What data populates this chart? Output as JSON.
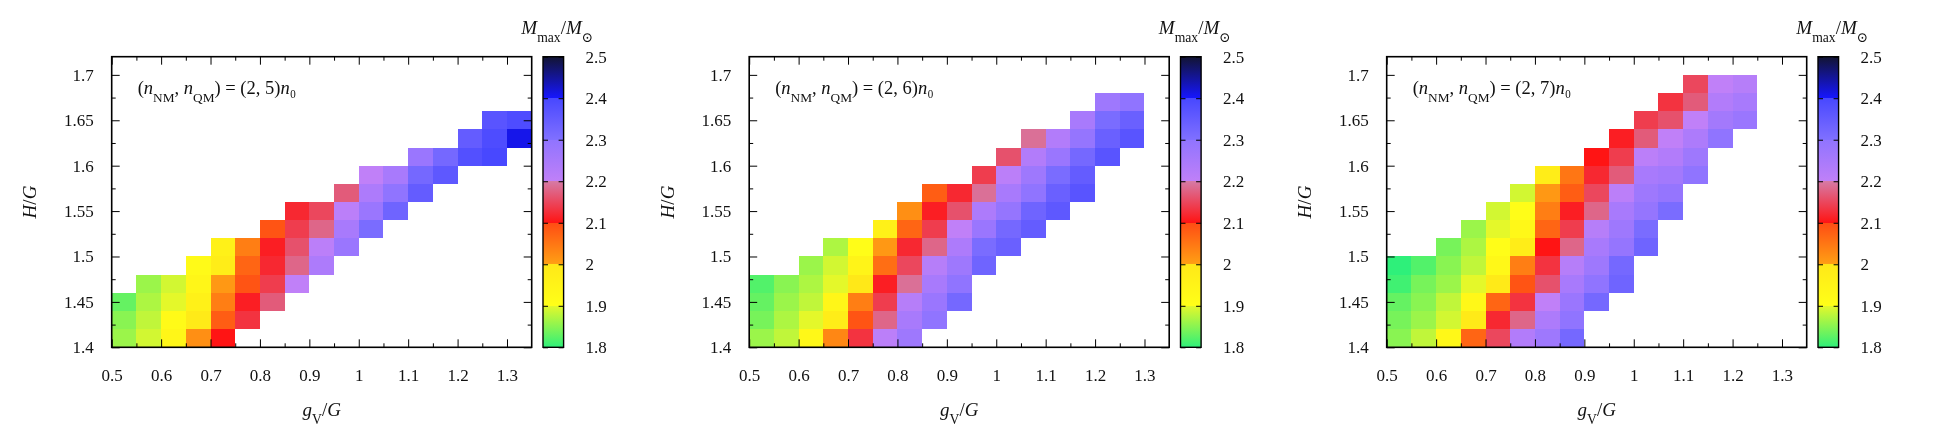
{
  "chart_data": [
    {
      "type": "scatter",
      "marker": "square",
      "xlabel": "g$_{V}$/G",
      "ylabel": "H/G",
      "clabel": "M$_{max}$/M$_{⊙}$",
      "annotations": [
        "(n$_{NM}$, n$_{QM}$) = (2, 5)n₀"
      ],
      "xlim": [
        0.5,
        1.35
      ],
      "ylim": [
        1.4,
        1.72
      ],
      "xticks": [
        0.5,
        {
          "value": 0.55,
          "label": null
        },
        0.6,
        {
          "value": 0.65,
          "label": null
        },
        0.7,
        {
          "value": 0.75,
          "label": null
        },
        0.8,
        {
          "value": 0.85,
          "label": null
        },
        0.9,
        {
          "value": 0.95,
          "label": null
        },
        1,
        {
          "value": 1.05,
          "label": null
        },
        1.1,
        {
          "value": 1.15,
          "label": null
        },
        1.2,
        {
          "value": 1.25,
          "label": null
        },
        1.3
      ],
      "yticks": [
        1.4,
        {
          "value": 1.425,
          "label": null
        },
        1.45,
        {
          "value": 1.475,
          "label": null
        },
        1.5,
        {
          "value": 1.525,
          "label": null
        },
        1.55,
        {
          "value": 1.575,
          "label": null
        },
        1.6,
        {
          "value": 1.625,
          "label": null
        },
        1.65,
        {
          "value": 1.675,
          "label": null
        },
        1.7
      ],
      "x": [
        0.525,
        0.525,
        0.525,
        0.575,
        0.575,
        0.575,
        0.575,
        0.625,
        0.625,
        0.625,
        0.625,
        0.675,
        0.675,
        0.675,
        0.675,
        0.675,
        0.725,
        0.725,
        0.725,
        0.725,
        0.725,
        0.725,
        0.775,
        0.775,
        0.775,
        0.775,
        0.775,
        0.825,
        0.825,
        0.825,
        0.825,
        0.825,
        0.875,
        0.875,
        0.875,
        0.875,
        0.875,
        0.925,
        0.925,
        0.925,
        0.925,
        0.975,
        0.975,
        0.975,
        0.975,
        1.025,
        1.025,
        1.025,
        1.025,
        1.075,
        1.075,
        1.075,
        1.125,
        1.125,
        1.125,
        1.175,
        1.175,
        1.225,
        1.225,
        1.275,
        1.275,
        1.275,
        1.325,
        1.325
      ],
      "values": [
        1.41,
        1.43,
        1.45,
        1.41,
        1.43,
        1.45,
        1.47,
        1.41,
        1.43,
        1.45,
        1.47,
        1.41,
        1.43,
        1.45,
        1.47,
        1.49,
        1.41,
        1.43,
        1.45,
        1.47,
        1.49,
        1.51,
        1.43,
        1.45,
        1.47,
        1.49,
        1.51,
        1.45,
        1.47,
        1.49,
        1.51,
        1.53,
        1.47,
        1.49,
        1.51,
        1.53,
        1.55,
        1.49,
        1.51,
        1.53,
        1.55,
        1.51,
        1.53,
        1.55,
        1.57,
        1.53,
        1.55,
        1.57,
        1.59,
        1.55,
        1.57,
        1.59,
        1.57,
        1.59,
        1.61,
        1.59,
        1.61,
        1.61,
        1.63,
        1.61,
        1.63,
        1.65,
        1.63,
        1.65
      ],
      "cvalues": [
        1.86,
        1.85,
        1.83,
        1.89,
        1.88,
        1.87,
        1.86,
        1.94,
        1.92,
        1.9,
        1.89,
        2.02,
        1.99,
        1.96,
        1.94,
        1.92,
        2.1,
        2.08,
        2.04,
        2.01,
        1.98,
        1.96,
        2.13,
        2.11,
        2.09,
        2.07,
        2.04,
        2.17,
        2.14,
        2.12,
        2.11,
        2.09,
        2.2,
        2.18,
        2.16,
        2.14,
        2.12,
        2.24,
        2.21,
        2.18,
        2.15,
        2.28,
        2.25,
        2.21,
        2.17,
        2.31,
        2.28,
        2.24,
        2.2,
        2.33,
        2.3,
        2.25,
        2.35,
        2.32,
        2.28,
        2.36,
        2.32,
        2.38,
        2.35,
        2.4,
        2.39,
        2.37,
        2.41,
        2.39
      ],
      "clim": [
        1.8,
        2.5
      ],
      "cticks": [
        1.8,
        1.9,
        2,
        2.1,
        2.2,
        2.3,
        2.4,
        2.5
      ]
    },
    {
      "type": "scatter",
      "marker": "square",
      "xlabel": "g$_{V}$/G",
      "ylabel": "H/G",
      "clabel": "M$_{max}$/M$_{⊙}$",
      "annotations": [
        "(n$_{NM}$, n$_{QM}$) = (2, 6)n₀"
      ],
      "xlim": [
        0.5,
        1.35
      ],
      "ylim": [
        1.4,
        1.72
      ],
      "xticks": [
        0.5,
        {
          "value": 0.55,
          "label": null
        },
        0.6,
        {
          "value": 0.65,
          "label": null
        },
        0.7,
        {
          "value": 0.75,
          "label": null
        },
        0.8,
        {
          "value": 0.85,
          "label": null
        },
        0.9,
        {
          "value": 0.95,
          "label": null
        },
        1,
        {
          "value": 1.05,
          "label": null
        },
        1.1,
        {
          "value": 1.15,
          "label": null
        },
        1.2,
        {
          "value": 1.25,
          "label": null
        },
        1.3
      ],
      "yticks": [
        1.4,
        {
          "value": 1.425,
          "label": null
        },
        1.45,
        {
          "value": 1.475,
          "label": null
        },
        1.5,
        {
          "value": 1.525,
          "label": null
        },
        1.55,
        {
          "value": 1.575,
          "label": null
        },
        1.6,
        {
          "value": 1.625,
          "label": null
        },
        1.65,
        {
          "value": 1.675,
          "label": null
        },
        1.7
      ],
      "x": [
        0.525,
        0.525,
        0.525,
        0.525,
        0.575,
        0.575,
        0.575,
        0.575,
        0.625,
        0.625,
        0.625,
        0.625,
        0.625,
        0.675,
        0.675,
        0.675,
        0.675,
        0.675,
        0.675,
        0.725,
        0.725,
        0.725,
        0.725,
        0.725,
        0.725,
        0.775,
        0.775,
        0.775,
        0.775,
        0.775,
        0.775,
        0.775,
        0.825,
        0.825,
        0.825,
        0.825,
        0.825,
        0.825,
        0.825,
        0.825,
        0.875,
        0.875,
        0.875,
        0.875,
        0.875,
        0.875,
        0.875,
        0.875,
        0.925,
        0.925,
        0.925,
        0.925,
        0.925,
        0.925,
        0.925,
        0.975,
        0.975,
        0.975,
        0.975,
        0.975,
        0.975,
        1.025,
        1.025,
        1.025,
        1.025,
        1.025,
        1.025,
        1.075,
        1.075,
        1.075,
        1.075,
        1.075,
        1.075,
        1.125,
        1.125,
        1.125,
        1.125,
        1.125,
        1.175,
        1.175,
        1.175,
        1.175,
        1.175,
        1.225,
        1.225,
        1.225,
        1.225,
        1.275,
        1.275,
        1.275
      ],
      "values": [
        1.41,
        1.43,
        1.45,
        1.47,
        1.41,
        1.43,
        1.45,
        1.47,
        1.41,
        1.43,
        1.45,
        1.47,
        1.49,
        1.41,
        1.43,
        1.45,
        1.47,
        1.49,
        1.51,
        1.41,
        1.43,
        1.45,
        1.47,
        1.49,
        1.51,
        1.41,
        1.43,
        1.45,
        1.47,
        1.49,
        1.51,
        1.53,
        1.41,
        1.43,
        1.45,
        1.47,
        1.49,
        1.51,
        1.53,
        1.55,
        1.43,
        1.45,
        1.47,
        1.49,
        1.51,
        1.53,
        1.55,
        1.57,
        1.45,
        1.47,
        1.49,
        1.51,
        1.53,
        1.55,
        1.57,
        1.49,
        1.51,
        1.53,
        1.55,
        1.57,
        1.59,
        1.51,
        1.53,
        1.55,
        1.57,
        1.59,
        1.61,
        1.53,
        1.55,
        1.57,
        1.59,
        1.61,
        1.63,
        1.55,
        1.57,
        1.59,
        1.61,
        1.63,
        1.57,
        1.59,
        1.61,
        1.63,
        1.65,
        1.61,
        1.63,
        1.65,
        1.67,
        1.63,
        1.65,
        1.67
      ],
      "cvalues": [
        1.86,
        1.84,
        1.83,
        1.82,
        1.88,
        1.87,
        1.86,
        1.85,
        1.93,
        1.9,
        1.88,
        1.87,
        1.86,
        2.03,
        1.98,
        1.94,
        1.9,
        1.89,
        1.87,
        2.13,
        2.09,
        2.04,
        2,
        1.95,
        1.91,
        2.21,
        2.18,
        2.14,
        2.11,
        2.06,
        2.01,
        1.96,
        2.27,
        2.25,
        2.22,
        2.19,
        2.15,
        2.12,
        2.07,
        2.02,
        2.3,
        2.28,
        2.25,
        2.22,
        2.18,
        2.14,
        2.11,
        2.08,
        2.32,
        2.3,
        2.27,
        2.24,
        2.2,
        2.16,
        2.12,
        2.33,
        2.31,
        2.28,
        2.24,
        2.19,
        2.14,
        2.34,
        2.32,
        2.29,
        2.25,
        2.21,
        2.16,
        2.35,
        2.33,
        2.3,
        2.27,
        2.23,
        2.19,
        2.36,
        2.34,
        2.31,
        2.28,
        2.23,
        2.37,
        2.35,
        2.32,
        2.29,
        2.25,
        2.37,
        2.34,
        2.31,
        2.27,
        2.37,
        2.34,
        2.3
      ],
      "clim": [
        1.8,
        2.5
      ],
      "cticks": [
        1.8,
        1.9,
        2,
        2.1,
        2.2,
        2.3,
        2.4,
        2.5
      ]
    },
    {
      "type": "scatter",
      "marker": "square",
      "xlabel": "g$_{V}$/G",
      "ylabel": "H/G",
      "clabel": "M$_{max}$/M$_{⊙}$",
      "annotations": [
        "(n$_{NM}$, n$_{QM}$) = (2, 7)n₀"
      ],
      "xlim": [
        0.5,
        1.35
      ],
      "ylim": [
        1.4,
        1.72
      ],
      "xticks": [
        0.5,
        {
          "value": 0.55,
          "label": null
        },
        0.6,
        {
          "value": 0.65,
          "label": null
        },
        0.7,
        {
          "value": 0.75,
          "label": null
        },
        0.8,
        {
          "value": 0.85,
          "label": null
        },
        0.9,
        {
          "value": 0.95,
          "label": null
        },
        1,
        {
          "value": 1.05,
          "label": null
        },
        1.1,
        {
          "value": 1.15,
          "label": null
        },
        1.2,
        {
          "value": 1.25,
          "label": null
        },
        1.3
      ],
      "yticks": [
        1.4,
        {
          "value": 1.425,
          "label": null
        },
        1.45,
        {
          "value": 1.475,
          "label": null
        },
        1.5,
        {
          "value": 1.525,
          "label": null
        },
        1.55,
        {
          "value": 1.575,
          "label": null
        },
        1.6,
        {
          "value": 1.625,
          "label": null
        },
        1.65,
        {
          "value": 1.675,
          "label": null
        },
        1.7
      ],
      "x": [
        0.525,
        0.525,
        0.525,
        0.525,
        0.525,
        0.575,
        0.575,
        0.575,
        0.575,
        0.575,
        0.625,
        0.625,
        0.625,
        0.625,
        0.625,
        0.625,
        0.675,
        0.675,
        0.675,
        0.675,
        0.675,
        0.675,
        0.675,
        0.725,
        0.725,
        0.725,
        0.725,
        0.725,
        0.725,
        0.725,
        0.725,
        0.775,
        0.775,
        0.775,
        0.775,
        0.775,
        0.775,
        0.775,
        0.775,
        0.775,
        0.825,
        0.825,
        0.825,
        0.825,
        0.825,
        0.825,
        0.825,
        0.825,
        0.825,
        0.825,
        0.875,
        0.875,
        0.875,
        0.875,
        0.875,
        0.875,
        0.875,
        0.875,
        0.875,
        0.875,
        0.925,
        0.925,
        0.925,
        0.925,
        0.925,
        0.925,
        0.925,
        0.925,
        0.925,
        0.975,
        0.975,
        0.975,
        0.975,
        0.975,
        0.975,
        0.975,
        0.975,
        0.975,
        1.025,
        1.025,
        1.025,
        1.025,
        1.025,
        1.025,
        1.025,
        1.025,
        1.075,
        1.075,
        1.075,
        1.075,
        1.075,
        1.075,
        1.075,
        1.125,
        1.125,
        1.125,
        1.125,
        1.125,
        1.125,
        1.175,
        1.175,
        1.175,
        1.175,
        1.225,
        1.225,
        1.225
      ],
      "values": [
        1.41,
        1.43,
        1.45,
        1.47,
        1.49,
        1.41,
        1.43,
        1.45,
        1.47,
        1.49,
        1.41,
        1.43,
        1.45,
        1.47,
        1.49,
        1.51,
        1.41,
        1.43,
        1.45,
        1.47,
        1.49,
        1.51,
        1.53,
        1.41,
        1.43,
        1.45,
        1.47,
        1.49,
        1.51,
        1.53,
        1.55,
        1.41,
        1.43,
        1.45,
        1.47,
        1.49,
        1.51,
        1.53,
        1.55,
        1.57,
        1.41,
        1.43,
        1.45,
        1.47,
        1.49,
        1.51,
        1.53,
        1.55,
        1.57,
        1.59,
        1.41,
        1.43,
        1.45,
        1.47,
        1.49,
        1.51,
        1.53,
        1.55,
        1.57,
        1.59,
        1.45,
        1.47,
        1.49,
        1.51,
        1.53,
        1.55,
        1.57,
        1.59,
        1.61,
        1.47,
        1.49,
        1.51,
        1.53,
        1.55,
        1.57,
        1.59,
        1.61,
        1.63,
        1.51,
        1.53,
        1.55,
        1.57,
        1.59,
        1.61,
        1.63,
        1.65,
        1.55,
        1.57,
        1.59,
        1.61,
        1.63,
        1.65,
        1.67,
        1.59,
        1.61,
        1.63,
        1.65,
        1.67,
        1.69,
        1.63,
        1.65,
        1.67,
        1.69,
        1.65,
        1.67,
        1.69
      ],
      "cvalues": [
        1.85,
        1.84,
        1.83,
        1.81,
        1.8,
        1.88,
        1.86,
        1.85,
        1.84,
        1.82,
        1.93,
        1.89,
        1.88,
        1.86,
        1.85,
        1.84,
        2.07,
        1.99,
        1.93,
        1.9,
        1.88,
        1.87,
        1.86,
        2.15,
        2.12,
        2.07,
        1.99,
        1.93,
        1.91,
        1.9,
        1.89,
        2.23,
        2.18,
        2.13,
        2.09,
        2.04,
        1.98,
        1.93,
        1.91,
        1.89,
        2.27,
        2.24,
        2.2,
        2.16,
        2.13,
        2.1,
        2.07,
        2.04,
        2.01,
        1.98,
        2.32,
        2.3,
        2.28,
        2.25,
        2.22,
        2.18,
        2.14,
        2.11,
        2.08,
        2.05,
        2.32,
        2.3,
        2.27,
        2.25,
        2.22,
        2.18,
        2.15,
        2.12,
        2.1,
        2.33,
        2.32,
        2.29,
        2.27,
        2.25,
        2.21,
        2.17,
        2.14,
        2.11,
        2.33,
        2.31,
        2.29,
        2.27,
        2.25,
        2.21,
        2.17,
        2.14,
        2.31,
        2.29,
        2.26,
        2.23,
        2.2,
        2.16,
        2.13,
        2.3,
        2.27,
        2.24,
        2.2,
        2.17,
        2.15,
        2.3,
        2.26,
        2.23,
        2.2,
        2.28,
        2.25,
        2.22
      ],
      "clim": [
        1.8,
        2.5
      ],
      "cticks": [
        1.8,
        1.9,
        2,
        2.1,
        2.2,
        2.3,
        2.4,
        2.5
      ]
    }
  ]
}
